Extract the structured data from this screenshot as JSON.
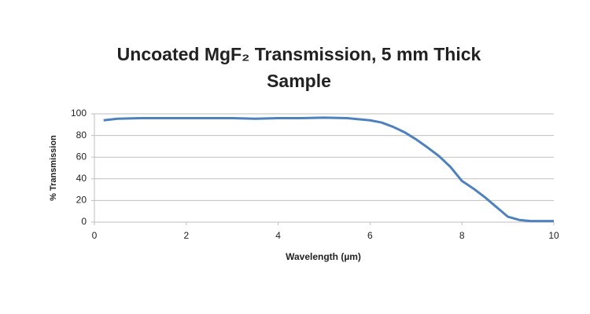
{
  "chart_data": {
    "type": "line",
    "title": "Uncoated MgF₂ Transmission, 5 mm Thick Sample",
    "x_label": "Wavelength (µm)",
    "y_label": "% Transmission",
    "x": [
      0.2,
      0.5,
      1,
      1.5,
      2,
      2.5,
      3,
      3.5,
      4,
      4.5,
      5,
      5.5,
      6,
      6.25,
      6.5,
      6.75,
      7,
      7.25,
      7.5,
      7.75,
      8,
      8.25,
      8.5,
      8.75,
      9,
      9.25,
      9.5,
      9.75,
      10
    ],
    "series": [
      {
        "name": "Transmission",
        "color": "#4f81bd",
        "values": [
          94,
          95.5,
          96,
          96,
          96,
          96,
          96,
          95.5,
          96,
          96,
          96.5,
          96,
          94,
          92,
          88,
          83,
          76.5,
          69,
          61,
          51,
          38,
          31,
          23,
          14,
          5,
          2,
          1,
          1,
          1
        ]
      }
    ],
    "xlim": [
      0,
      10
    ],
    "xticks": [
      0,
      2,
      4,
      6,
      8,
      10
    ],
    "ylim": [
      0,
      100
    ],
    "yticks": [
      0,
      20,
      40,
      60,
      80,
      100
    ],
    "grid": true
  }
}
